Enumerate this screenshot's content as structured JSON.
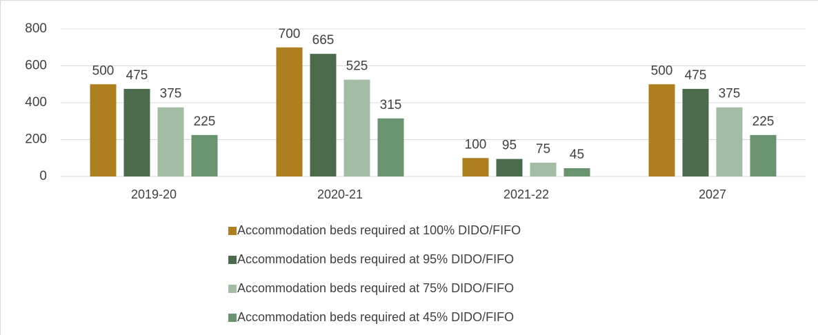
{
  "chart_data": {
    "type": "bar",
    "categories": [
      "2019-20",
      "2020-21",
      "2021-22",
      "2027"
    ],
    "series": [
      {
        "name": "Accommodation beds required at 100% DIDO/FIFO",
        "color": "#ae7f1e",
        "values": [
          500,
          700,
          100,
          500
        ]
      },
      {
        "name": "Accommodation beds required at 95% DIDO/FIFO",
        "color": "#4c6b4c",
        "values": [
          475,
          665,
          95,
          475
        ]
      },
      {
        "name": "Accommodation beds required at 75% DIDO/FIFO",
        "color": "#a3bda5",
        "values": [
          375,
          525,
          75,
          375
        ]
      },
      {
        "name": "Accommodation beds required at 45% DIDO/FIFO",
        "color": "#6a9470",
        "values": [
          225,
          315,
          45,
          225
        ]
      }
    ],
    "ylim": [
      0,
      800
    ],
    "yticks": [
      0,
      200,
      400,
      600,
      800
    ],
    "grid": true,
    "legend": "bottom"
  }
}
